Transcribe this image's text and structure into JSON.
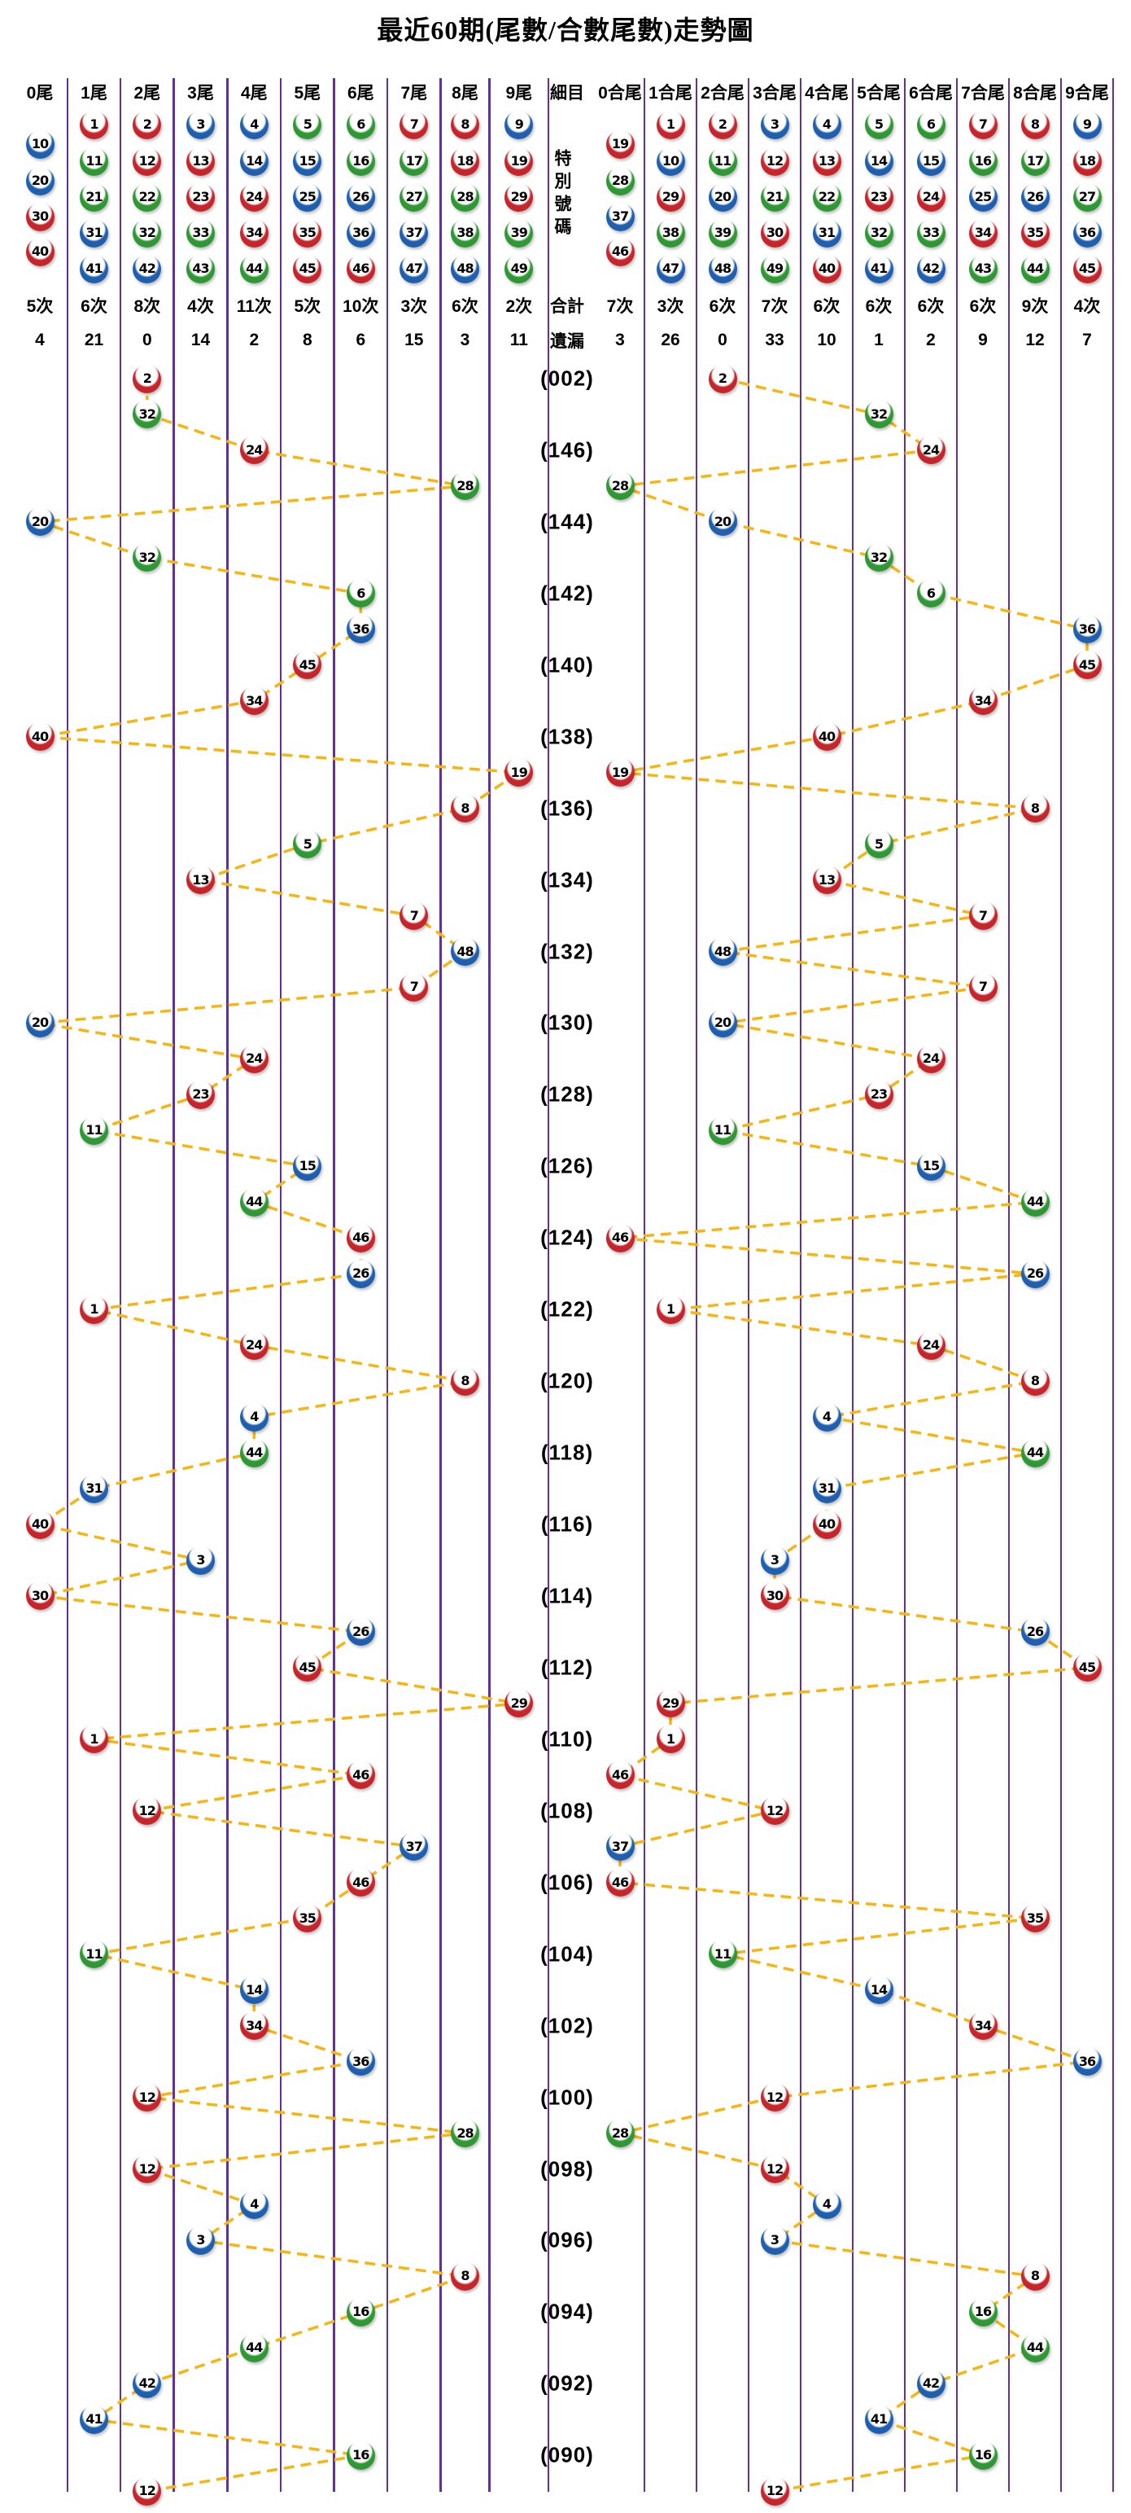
{
  "title": "最近60期(尾數/合數尾數)走勢圖",
  "left_header": {
    "labels": [
      "0尾",
      "1尾",
      "2尾",
      "3尾",
      "4尾",
      "5尾",
      "6尾",
      "7尾",
      "8尾",
      "9尾"
    ],
    "ball_sets": [
      [
        10,
        20,
        30,
        40
      ],
      [
        1,
        11,
        21,
        31,
        41
      ],
      [
        2,
        12,
        22,
        32,
        42
      ],
      [
        3,
        13,
        23,
        33,
        43
      ],
      [
        4,
        14,
        24,
        34,
        44
      ],
      [
        5,
        15,
        25,
        35,
        45
      ],
      [
        6,
        16,
        26,
        36,
        46
      ],
      [
        7,
        17,
        27,
        37,
        47
      ],
      [
        8,
        18,
        28,
        38,
        48
      ],
      [
        9,
        19,
        29,
        39,
        49
      ]
    ]
  },
  "middle_header": {
    "top": "細目",
    "vertical": "特別號碼",
    "total_label": "合計",
    "miss_label": "遺漏"
  },
  "right_header": {
    "labels": [
      "0合尾",
      "1合尾",
      "2合尾",
      "3合尾",
      "4合尾",
      "5合尾",
      "6合尾",
      "7合尾",
      "8合尾",
      "9合尾"
    ],
    "ball_sets": [
      [
        19,
        28,
        37,
        46
      ],
      [
        1,
        10,
        29,
        38,
        47
      ],
      [
        2,
        11,
        20,
        39,
        48
      ],
      [
        3,
        12,
        21,
        30,
        49
      ],
      [
        4,
        13,
        22,
        31,
        40
      ],
      [
        5,
        14,
        23,
        32,
        41
      ],
      [
        6,
        15,
        24,
        33,
        42
      ],
      [
        7,
        16,
        25,
        34,
        43
      ],
      [
        8,
        17,
        26,
        35,
        44
      ],
      [
        9,
        18,
        27,
        36,
        45
      ]
    ]
  },
  "left_counts": [
    "5次",
    "6次",
    "8次",
    "4次",
    "11次",
    "5次",
    "10次",
    "3次",
    "6次",
    "2次"
  ],
  "left_miss": [
    "4",
    "21",
    "0",
    "14",
    "2",
    "8",
    "6",
    "15",
    "3",
    "11"
  ],
  "right_counts": [
    "7次",
    "3次",
    "6次",
    "7次",
    "6次",
    "6次",
    "6次",
    "6次",
    "9次",
    "4次"
  ],
  "right_miss": [
    "3",
    "26",
    "0",
    "33",
    "10",
    "1",
    "2",
    "9",
    "12",
    "7"
  ],
  "colors": {
    "red": "#C5262C",
    "blue": "#1F5FAE",
    "green": "#2F9733",
    "line": "#F7B514",
    "grid": "#63309B",
    "number": "#000000"
  },
  "number_colors": {
    "red": [
      1,
      2,
      7,
      8,
      12,
      13,
      18,
      19,
      23,
      24,
      29,
      30,
      34,
      35,
      40,
      45,
      46
    ],
    "blue": [
      3,
      4,
      9,
      10,
      14,
      15,
      20,
      25,
      26,
      31,
      36,
      37,
      41,
      42,
      47,
      48
    ],
    "green": [
      5,
      6,
      11,
      16,
      17,
      21,
      22,
      27,
      28,
      32,
      33,
      38,
      39,
      43,
      44,
      49
    ]
  },
  "chart_data": {
    "type": "scatter",
    "title": "最近60期(尾數/合數尾數)走勢圖",
    "description": "Trend chart of the special number over the last 60 draws. Left half: column = last digit of the special number (0尾–9尾). Right half: column = last digit of the sum of its digits (0合尾–9合尾). Consecutive draws are linked by dashed lines. Period labels are shown every second row.",
    "left_axis_categories": [
      "0尾",
      "1尾",
      "2尾",
      "3尾",
      "4尾",
      "5尾",
      "6尾",
      "7尾",
      "8尾",
      "9尾"
    ],
    "right_axis_categories": [
      "0合尾",
      "1合尾",
      "2合尾",
      "3合尾",
      "4合尾",
      "5合尾",
      "6合尾",
      "7合尾",
      "8合尾",
      "9合尾"
    ],
    "rows": [
      {
        "period": "(002)",
        "special": 2
      },
      {
        "period": "",
        "special": 32
      },
      {
        "period": "(146)",
        "special": 24
      },
      {
        "period": "",
        "special": 28
      },
      {
        "period": "(144)",
        "special": 20
      },
      {
        "period": "",
        "special": 32
      },
      {
        "period": "(142)",
        "special": 6
      },
      {
        "period": "",
        "special": 36
      },
      {
        "period": "(140)",
        "special": 45
      },
      {
        "period": "",
        "special": 34
      },
      {
        "period": "(138)",
        "special": 40
      },
      {
        "period": "",
        "special": 19
      },
      {
        "period": "(136)",
        "special": 8
      },
      {
        "period": "",
        "special": 5
      },
      {
        "period": "(134)",
        "special": 13
      },
      {
        "period": "",
        "special": 7
      },
      {
        "period": "(132)",
        "special": 48
      },
      {
        "period": "",
        "special": 7
      },
      {
        "period": "(130)",
        "special": 20
      },
      {
        "period": "",
        "special": 24
      },
      {
        "period": "(128)",
        "special": 23
      },
      {
        "period": "",
        "special": 11
      },
      {
        "period": "(126)",
        "special": 15
      },
      {
        "period": "",
        "special": 44
      },
      {
        "period": "(124)",
        "special": 46
      },
      {
        "period": "",
        "special": 26
      },
      {
        "period": "(122)",
        "special": 1
      },
      {
        "period": "",
        "special": 24
      },
      {
        "period": "(120)",
        "special": 8
      },
      {
        "period": "",
        "special": 4
      },
      {
        "period": "(118)",
        "special": 44
      },
      {
        "period": "",
        "special": 31
      },
      {
        "period": "(116)",
        "special": 40
      },
      {
        "period": "",
        "special": 3
      },
      {
        "period": "(114)",
        "special": 30
      },
      {
        "period": "",
        "special": 26
      },
      {
        "period": "(112)",
        "special": 45
      },
      {
        "period": "",
        "special": 29
      },
      {
        "period": "(110)",
        "special": 1
      },
      {
        "period": "",
        "special": 46
      },
      {
        "period": "(108)",
        "special": 12
      },
      {
        "period": "",
        "special": 37
      },
      {
        "period": "(106)",
        "special": 46
      },
      {
        "period": "",
        "special": 35
      },
      {
        "period": "(104)",
        "special": 11
      },
      {
        "period": "",
        "special": 14
      },
      {
        "period": "(102)",
        "special": 34
      },
      {
        "period": "",
        "special": 36
      },
      {
        "period": "(100)",
        "special": 12
      },
      {
        "period": "",
        "special": 28
      },
      {
        "period": "(098)",
        "special": 12
      },
      {
        "period": "",
        "special": 4
      },
      {
        "period": "(096)",
        "special": 3
      },
      {
        "period": "",
        "special": 8
      },
      {
        "period": "(094)",
        "special": 16
      },
      {
        "period": "",
        "special": 44
      },
      {
        "period": "(092)",
        "special": 42
      },
      {
        "period": "",
        "special": 41
      },
      {
        "period": "(090)",
        "special": 16
      },
      {
        "period": "",
        "special": 12
      }
    ]
  }
}
